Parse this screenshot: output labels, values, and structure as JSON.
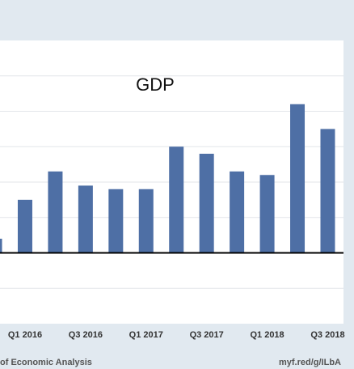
{
  "chart_data": {
    "type": "bar",
    "title": "GDP",
    "categories": [
      null,
      "Q1 2016",
      null,
      "Q3 2016",
      null,
      "Q1 2017",
      null,
      "Q3 2017",
      null,
      "Q1 2018",
      null,
      "Q3 2018"
    ],
    "values": [
      0.4,
      1.5,
      2.3,
      1.9,
      1.8,
      1.8,
      3.0,
      2.8,
      2.3,
      2.2,
      4.2,
      3.5
    ],
    "color": "#4e6fa5",
    "ylim": [
      -2,
      6
    ],
    "yticks": [
      -1,
      0,
      1,
      2,
      3,
      4,
      5
    ],
    "grid": true,
    "source": "of Economic Analysis",
    "link": "myf.red/g/ILbA"
  }
}
